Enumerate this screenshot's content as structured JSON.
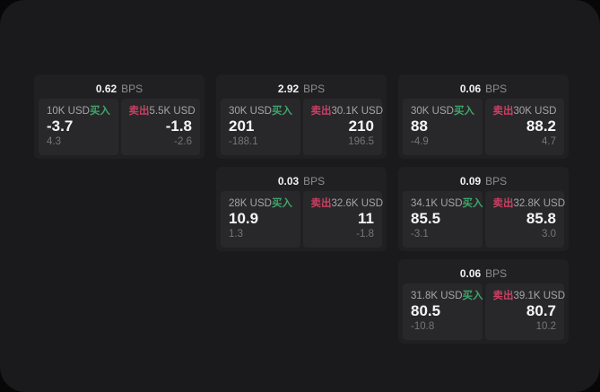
{
  "colors": {
    "buy_green": "#3fa56a",
    "sell_red": "#cb3f63",
    "value_white": "#f5f5f6"
  },
  "labels": {
    "bps_unit": "BPS",
    "buy": "买入",
    "sell": "卖出"
  },
  "cards": [
    {
      "row": 1,
      "col": 1,
      "bps": "0.62",
      "buy": {
        "amount": "10K USD",
        "price": "-3.7",
        "sub": "4.3"
      },
      "sell": {
        "amount": "5.5K USD",
        "price": "-1.8",
        "sub": "-2.6"
      }
    },
    {
      "row": 1,
      "col": 2,
      "bps": "2.92",
      "buy": {
        "amount": "30K USD",
        "price": "201",
        "sub": "-188.1"
      },
      "sell": {
        "amount": "30.1K USD",
        "price": "210",
        "sub": "196.5"
      }
    },
    {
      "row": 1,
      "col": 3,
      "bps": "0.06",
      "buy": {
        "amount": "30K USD",
        "price": "88",
        "sub": "-4.9"
      },
      "sell": {
        "amount": "30K USD",
        "price": "88.2",
        "sub": "4.7"
      }
    },
    {
      "row": 2,
      "col": 2,
      "bps": "0.03",
      "buy": {
        "amount": "28K USD",
        "price": "10.9",
        "sub": "1.3"
      },
      "sell": {
        "amount": "32.6K USD",
        "price": "11",
        "sub": "-1.8"
      }
    },
    {
      "row": 2,
      "col": 3,
      "bps": "0.09",
      "buy": {
        "amount": "34.1K USD",
        "price": "85.5",
        "sub": "-3.1"
      },
      "sell": {
        "amount": "32.8K USD",
        "price": "85.8",
        "sub": "3.0"
      }
    },
    {
      "row": 3,
      "col": 3,
      "bps": "0.06",
      "buy": {
        "amount": "31.8K USD",
        "price": "80.5",
        "sub": "-10.8"
      },
      "sell": {
        "amount": "39.1K USD",
        "price": "80.7",
        "sub": "10.2"
      }
    }
  ]
}
